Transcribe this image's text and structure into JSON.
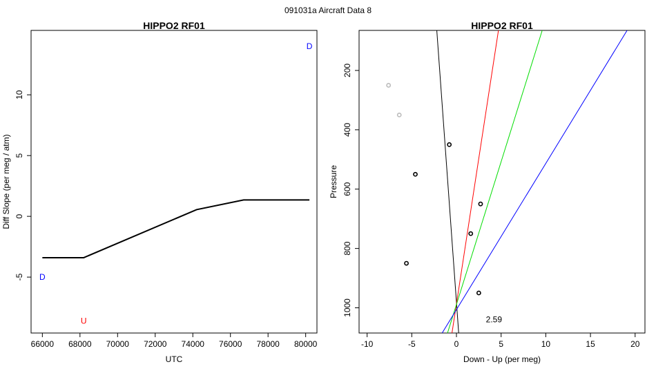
{
  "suptitle": "091031a   Aircraft Data 8",
  "chart_data": [
    {
      "type": "line",
      "title": "HIPPO2 RF01",
      "xlabel": "UTC",
      "ylabel": "Diff Slope (per meg / atm)",
      "xlim": [
        65400,
        80600
      ],
      "ylim": [
        -9.6,
        15.3
      ],
      "xticks": [
        66000,
        68000,
        70000,
        72000,
        74000,
        76000,
        78000,
        80000
      ],
      "yticks": [
        -5,
        0,
        5,
        10
      ],
      "series": [
        {
          "color": "#000000",
          "x": [
            66000,
            68200,
            74200,
            76700,
            80200
          ],
          "y": [
            -3.4,
            -3.4,
            0.55,
            1.35,
            1.35
          ]
        }
      ],
      "annotations": [
        {
          "text": "D",
          "x": 66000,
          "y": -5.0,
          "color": "#0000ff"
        },
        {
          "text": "U",
          "x": 68200,
          "y": -8.6,
          "color": "#ff0000"
        },
        {
          "text": "D",
          "x": 80200,
          "y": 14.0,
          "color": "#0000ff"
        }
      ],
      "grid": false
    },
    {
      "type": "scatter",
      "title": "HIPPO2 RF01",
      "xlabel": "Down - Up (per meg)",
      "ylabel": "Pressure",
      "xlim": [
        -10.9,
        21.1
      ],
      "ylim": [
        1085,
        65
      ],
      "y_reversed": true,
      "xticks": [
        -10,
        -5,
        0,
        5,
        10,
        15,
        20
      ],
      "yticks": [
        200,
        400,
        600,
        800,
        1000
      ],
      "points": [
        {
          "x": -7.6,
          "y": 250,
          "color": "#bbbbbb"
        },
        {
          "x": -6.4,
          "y": 350,
          "color": "#bbbbbb"
        },
        {
          "x": -0.8,
          "y": 450,
          "color": "#000000"
        },
        {
          "x": -4.6,
          "y": 550,
          "color": "#000000"
        },
        {
          "x": 2.7,
          "y": 650,
          "color": "#000000"
        },
        {
          "x": 1.6,
          "y": 750,
          "color": "#000000"
        },
        {
          "x": -5.6,
          "y": 850,
          "color": "#000000"
        },
        {
          "x": 2.5,
          "y": 950,
          "color": "#000000"
        }
      ],
      "lines": [
        {
          "color": "#000000",
          "x0": 0.25,
          "y0": 1085,
          "x1": -2.2,
          "y1": 65
        },
        {
          "color": "#ff0000",
          "x0": -0.5,
          "y0": 1085,
          "x1": 4.7,
          "y1": 65
        },
        {
          "color": "#00dd00",
          "x0": -1.0,
          "y0": 1085,
          "x1": 9.6,
          "y1": 65
        },
        {
          "color": "#0000ff",
          "x0": -1.6,
          "y0": 1085,
          "x1": 19.1,
          "y1": 65
        }
      ],
      "annotations": [
        {
          "text": "2.59",
          "x": 4.2,
          "y": 1040,
          "color": "#000000"
        }
      ],
      "grid": false
    }
  ]
}
